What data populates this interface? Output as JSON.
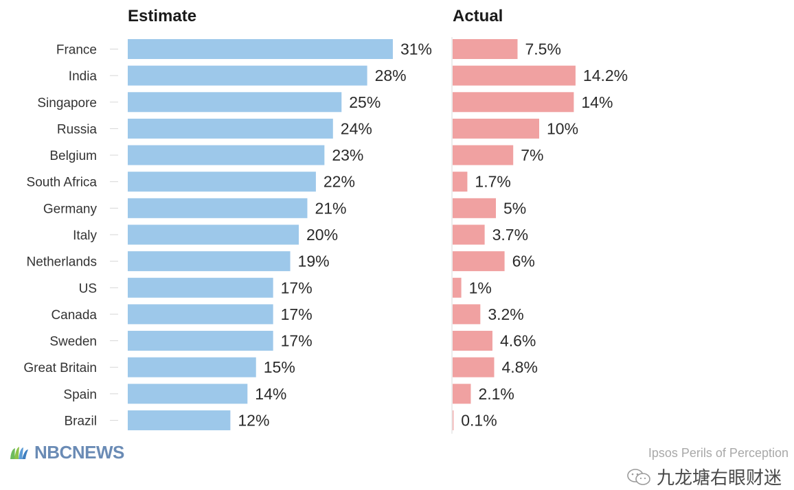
{
  "chart_data": {
    "type": "bar",
    "orientation": "horizontal",
    "categories": [
      "France",
      "India",
      "Singapore",
      "Russia",
      "Belgium",
      "South Africa",
      "Germany",
      "Italy",
      "Netherlands",
      "US",
      "Canada",
      "Sweden",
      "Great Britain",
      "Spain",
      "Brazil"
    ],
    "series": [
      {
        "name": "Estimate",
        "values": [
          31,
          28,
          25,
          24,
          23,
          22,
          21,
          20,
          19,
          17,
          17,
          17,
          15,
          14,
          12
        ],
        "labels": [
          "31%",
          "28%",
          "25%",
          "24%",
          "23%",
          "22%",
          "21%",
          "20%",
          "19%",
          "17%",
          "17%",
          "17%",
          "15%",
          "14%",
          "12%"
        ],
        "color": "#9dc8ea"
      },
      {
        "name": "Actual",
        "values": [
          7.5,
          14.2,
          14,
          10,
          7,
          1.7,
          5,
          3.7,
          6,
          1,
          3.2,
          4.6,
          4.8,
          2.1,
          0.1
        ],
        "labels": [
          "7.5%",
          "14.2%",
          "14%",
          "10%",
          "7%",
          "1.7%",
          "5%",
          "3.7%",
          "6%",
          "1%",
          "3.2%",
          "4.6%",
          "4.8%",
          "2.1%",
          "0.1%"
        ],
        "color": "#f0a1a1"
      }
    ],
    "legend": "panel-headers-top"
  },
  "brand": {
    "name": "NBCNEWS",
    "icon": "peacock-icon",
    "color": "#6a8bb5"
  },
  "source": "Ipsos Perils of Perception",
  "watermark": {
    "text": "九龙塘右眼财迷",
    "icon": "wechat-icon"
  }
}
